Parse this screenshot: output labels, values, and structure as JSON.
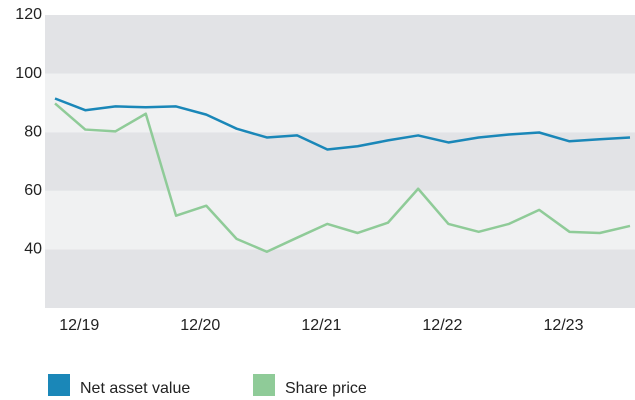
{
  "chart_data": {
    "type": "line",
    "categories": [
      null,
      "12/19",
      null,
      null,
      null,
      "12/20",
      null,
      null,
      null,
      "12/21",
      null,
      null,
      null,
      "12/22",
      null,
      null,
      null,
      "12/23",
      null,
      null
    ],
    "series": [
      {
        "name": "Net asset value",
        "color": "#1a87b8",
        "values": [
          91.5,
          87.5,
          88.8,
          88.5,
          88.8,
          86,
          81.2,
          78.2,
          78.9,
          74.1,
          75.2,
          77.2,
          78.9,
          76.5,
          78.2,
          79.2,
          79.9,
          76.9,
          77.6,
          78.2
        ]
      },
      {
        "name": "Share price",
        "color": "#8fcb98",
        "values": [
          89.8,
          80.9,
          80.3,
          86.3,
          51.5,
          54.9,
          43.6,
          39.2,
          44,
          48.7,
          45.6,
          49.1,
          60.7,
          48.7,
          46,
          48.7,
          53.5,
          46,
          45.6,
          48
        ]
      }
    ],
    "ylim": [
      20,
      120
    ],
    "yticks": [
      40,
      60,
      80,
      100,
      120
    ],
    "grid": true
  }
}
